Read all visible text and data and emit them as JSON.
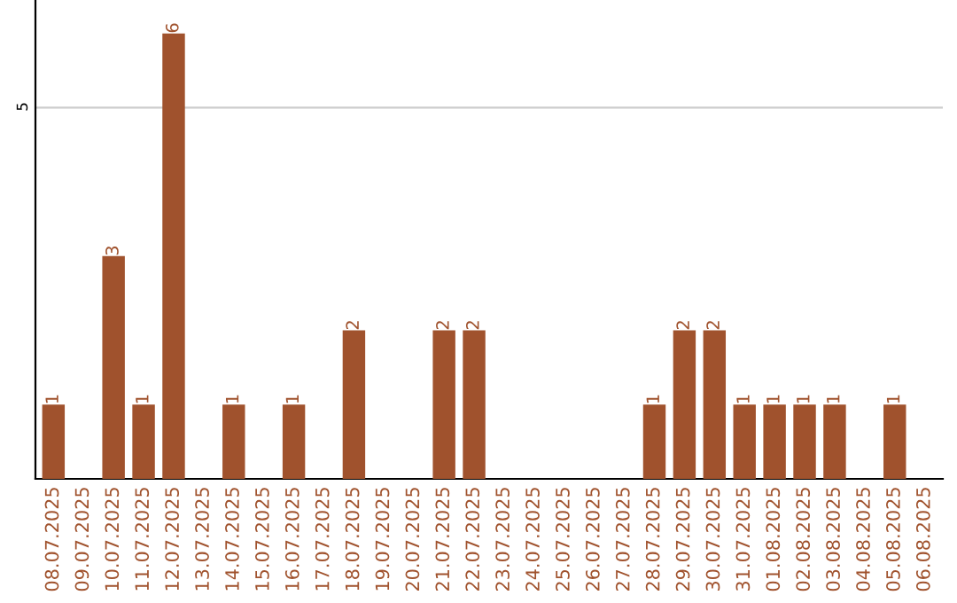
{
  "chart_data": {
    "type": "bar",
    "categories": [
      "08.07.2025",
      "09.07.2025",
      "10.07.2025",
      "11.07.2025",
      "12.07.2025",
      "13.07.2025",
      "14.07.2025",
      "15.07.2025",
      "16.07.2025",
      "17.07.2025",
      "18.07.2025",
      "19.07.2025",
      "20.07.2025",
      "21.07.2025",
      "22.07.2025",
      "23.07.2025",
      "24.07.2025",
      "25.07.2025",
      "26.07.2025",
      "27.07.2025",
      "28.07.2025",
      "29.07.2025",
      "30.07.2025",
      "31.07.2025",
      "01.08.2025",
      "02.08.2025",
      "03.08.2025",
      "04.08.2025",
      "05.08.2025",
      "06.08.2025"
    ],
    "values": [
      1,
      0,
      3,
      1,
      6,
      0,
      1,
      0,
      1,
      0,
      2,
      0,
      0,
      2,
      2,
      0,
      0,
      0,
      0,
      0,
      1,
      2,
      2,
      1,
      1,
      1,
      1,
      0,
      1,
      0
    ],
    "value_labels": [
      "1",
      null,
      "3",
      "1",
      "6",
      null,
      "1",
      null,
      "1",
      null,
      "2",
      null,
      null,
      "2",
      "2",
      null,
      null,
      null,
      null,
      null,
      "1",
      "2",
      "2",
      "1",
      "1",
      "1",
      "1",
      null,
      "1",
      null
    ],
    "color": "#a0522d",
    "ylim": [
      0,
      6.45
    ],
    "yticks": [
      5
    ],
    "grid": "y"
  }
}
